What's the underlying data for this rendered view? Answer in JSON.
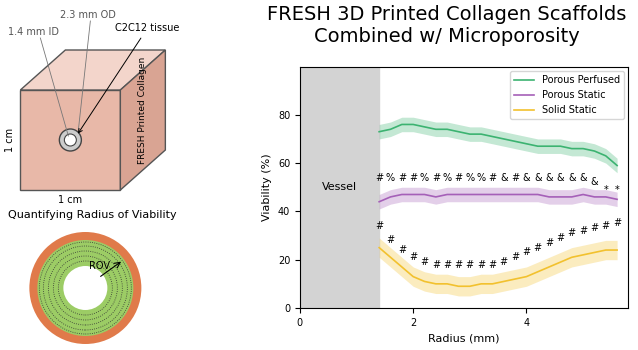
{
  "title": "FRESH 3D Printed Collagen Scaffolds Combined w/ Microporosity",
  "diagram": {
    "cube": {
      "outer_diameter": "2.3 mm OD",
      "inner_diameter": "1.4 mm ID",
      "tissue": "C2C12 tissue",
      "height": "1 cm",
      "width": "1 cm",
      "material": "FRESH Printed Collagen"
    },
    "viability": {
      "caption": "Quantifying Radius of Viability",
      "radius_label": "ROV"
    }
  },
  "chart_data": {
    "type": "line",
    "x_label": "Radius (mm)",
    "y_label": "Viability (%)",
    "xlim": [
      0,
      5.8
    ],
    "xticks": [
      0,
      2,
      4
    ],
    "ylim": [
      0,
      100
    ],
    "yticks": [
      0,
      20,
      40,
      60,
      80
    ],
    "legend": "upper right",
    "vessel": {
      "label": "Vessel",
      "x_range": [
        0,
        1.4
      ]
    },
    "x": [
      1.4,
      1.6,
      1.8,
      2.0,
      2.2,
      2.4,
      2.6,
      2.8,
      3.0,
      3.2,
      3.4,
      3.6,
      3.8,
      4.0,
      4.2,
      4.4,
      4.6,
      4.8,
      5.0,
      5.2,
      5.4,
      5.6
    ],
    "series": [
      {
        "name": "Porous Perfused",
        "color": "#3cb371",
        "values": [
          73,
          74,
          76,
          76,
          75,
          74,
          74,
          73,
          72,
          72,
          71,
          70,
          69,
          68,
          67,
          67,
          67,
          66,
          66,
          65,
          63,
          59
        ],
        "error": 3
      },
      {
        "name": "Porous Static",
        "color": "#a560b8",
        "values": [
          44,
          46,
          47,
          47,
          47,
          46,
          47,
          47,
          47,
          47,
          47,
          47,
          47,
          47,
          47,
          46,
          46,
          46,
          47,
          46,
          46,
          45
        ],
        "error": 3
      },
      {
        "name": "Solid Static",
        "color": "#f2c12e",
        "values": [
          25,
          21,
          17,
          13,
          11,
          10,
          10,
          9,
          9,
          10,
          10,
          11,
          12,
          13,
          15,
          17,
          19,
          21,
          22,
          23,
          24,
          24
        ],
        "error": 4
      }
    ],
    "annotations": [
      {
        "x": [
          1.4,
          1.6,
          1.8,
          2.0,
          2.2,
          2.4,
          2.6,
          2.8,
          3.0,
          3.2,
          3.4,
          3.6,
          3.8,
          4.0,
          4.2,
          4.4,
          4.6,
          4.8,
          5.0,
          5.2,
          5.4,
          5.6
        ],
        "y": [
          54,
          54,
          54,
          54,
          54,
          54,
          54,
          54,
          54,
          54,
          54,
          54,
          54,
          54,
          54,
          54,
          54,
          54,
          54,
          52,
          49,
          49
        ],
        "labels": [
          "#",
          "%",
          "#",
          "#",
          "%",
          "#",
          "%",
          "#",
          "%",
          "%",
          "#",
          "&",
          "#",
          "&",
          "&",
          "&",
          "&",
          "&",
          "&",
          "&",
          "*",
          "*"
        ]
      },
      {
        "x": [
          1.4,
          1.6,
          1.8,
          2.0,
          2.2,
          2.4,
          2.6,
          2.8,
          3.0,
          3.2,
          3.4,
          3.6,
          3.8,
          4.0,
          4.2,
          4.4,
          4.6,
          4.8,
          5.0,
          5.2,
          5.4,
          5.6
        ],
        "y": [
          34,
          28,
          24,
          21,
          19,
          18,
          18,
          18,
          18,
          18,
          18,
          19,
          21,
          23,
          25,
          27,
          29,
          31,
          32,
          33,
          34,
          35
        ],
        "labels": [
          "#",
          "#",
          "#",
          "#",
          "#",
          "#",
          "#",
          "#",
          "#",
          "#",
          "#",
          "#",
          "#",
          "#",
          "#",
          "#",
          "#",
          "#",
          "#",
          "#",
          "#",
          "#"
        ]
      }
    ]
  }
}
